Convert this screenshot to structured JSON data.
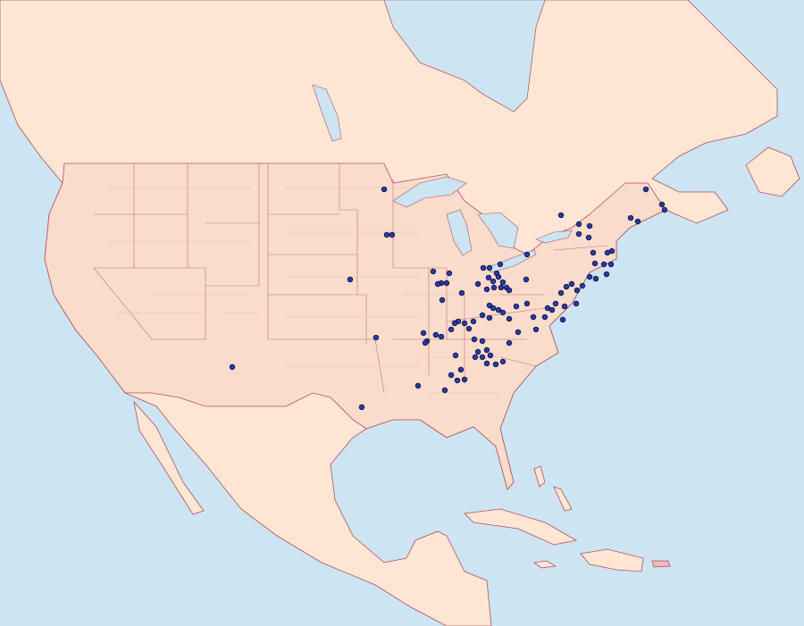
{
  "map": {
    "points": [
      {
        "lon": -92.46,
        "lat": 46.74
      },
      {
        "lon": -92.22,
        "lat": 42.78
      },
      {
        "lon": -91.74,
        "lat": 42.78
      },
      {
        "lon": -95.53,
        "lat": 38.89
      },
      {
        "lon": -93.19,
        "lat": 33.83
      },
      {
        "lon": -106.17,
        "lat": 31.27
      },
      {
        "lon": -94.48,
        "lat": 27.77
      },
      {
        "lon": -76.49,
        "lat": 44.49
      },
      {
        "lon": -74.88,
        "lat": 43.71
      },
      {
        "lon": -73.91,
        "lat": 43.55
      },
      {
        "lon": -68.83,
        "lat": 46.74
      },
      {
        "lon": -70.2,
        "lat": 44.25
      },
      {
        "lon": -69.56,
        "lat": 43.94
      },
      {
        "lon": -67.38,
        "lat": 45.42
      },
      {
        "lon": -67.14,
        "lat": 44.95
      },
      {
        "lon": -73.99,
        "lat": 42.54
      },
      {
        "lon": -74.88,
        "lat": 42.85
      },
      {
        "lon": -73.59,
        "lat": 41.22
      },
      {
        "lon": -72.3,
        "lat": 41.22
      },
      {
        "lon": -71.9,
        "lat": 41.37
      },
      {
        "lon": -73.43,
        "lat": 40.29
      },
      {
        "lon": -72.62,
        "lat": 40.21
      },
      {
        "lon": -71.98,
        "lat": 40.21
      },
      {
        "lon": -72.38,
        "lat": 39.35
      },
      {
        "lon": -73.35,
        "lat": 38.96
      },
      {
        "lon": -73.91,
        "lat": 39.12
      },
      {
        "lon": -74.56,
        "lat": 38.34
      },
      {
        "lon": -75.53,
        "lat": 38.5
      },
      {
        "lon": -75.04,
        "lat": 37.95
      },
      {
        "lon": -76.01,
        "lat": 38.26
      },
      {
        "lon": -76.49,
        "lat": 37.72
      },
      {
        "lon": -75.12,
        "lat": 36.79
      },
      {
        "lon": -76.17,
        "lat": 36.55
      },
      {
        "lon": -76.98,
        "lat": 36.79
      },
      {
        "lon": -77.7,
        "lat": 36.4
      },
      {
        "lon": -77.3,
        "lat": 36.24
      },
      {
        "lon": -76.33,
        "lat": 35.39
      },
      {
        "lon": -77.95,
        "lat": 35.62
      },
      {
        "lon": -79.56,
        "lat": 41.07
      },
      {
        "lon": -79.64,
        "lat": 38.89
      },
      {
        "lon": -81.98,
        "lat": 40.21
      },
      {
        "lon": -82.3,
        "lat": 39.43
      },
      {
        "lon": -82.95,
        "lat": 39.9
      },
      {
        "lon": -83.51,
        "lat": 39.9
      },
      {
        "lon": -83.03,
        "lat": 39.05
      },
      {
        "lon": -82.62,
        "lat": 38.73
      },
      {
        "lon": -82.14,
        "lat": 39.12
      },
      {
        "lon": -81.74,
        "lat": 38.65
      },
      {
        "lon": -81.41,
        "lat": 38.19
      },
      {
        "lon": -81.17,
        "lat": 37.95
      },
      {
        "lon": -81.9,
        "lat": 38.19
      },
      {
        "lon": -82.54,
        "lat": 38.19
      },
      {
        "lon": -83.19,
        "lat": 38.03
      },
      {
        "lon": -83.99,
        "lat": 38.5
      },
      {
        "lon": -85.45,
        "lat": 37.72
      },
      {
        "lon": -86.82,
        "lat": 38.58
      },
      {
        "lon": -87.3,
        "lat": 38.58
      },
      {
        "lon": -87.62,
        "lat": 38.5
      },
      {
        "lon": -88.03,
        "lat": 39.59
      },
      {
        "lon": -86.58,
        "lat": 39.43
      },
      {
        "lon": -87.22,
        "lat": 37.1
      },
      {
        "lon": -82.95,
        "lat": 36.63
      },
      {
        "lon": -82.62,
        "lat": 36.4
      },
      {
        "lon": -83.59,
        "lat": 35.78
      },
      {
        "lon": -82.95,
        "lat": 35.55
      },
      {
        "lon": -82.14,
        "lat": 36.24
      },
      {
        "lon": -81.74,
        "lat": 36.01
      },
      {
        "lon": -81.17,
        "lat": 35.47
      },
      {
        "lon": -80.53,
        "lat": 36.55
      },
      {
        "lon": -79.56,
        "lat": 36.79
      },
      {
        "lon": -78.99,
        "lat": 35.62
      },
      {
        "lon": -80.37,
        "lat": 34.3
      },
      {
        "lon": -84.4,
        "lat": 35.24
      },
      {
        "lon": -84.8,
        "lat": 34.61
      },
      {
        "lon": -85.77,
        "lat": 35.24
      },
      {
        "lon": -86.09,
        "lat": 35.08
      },
      {
        "lon": -86.41,
        "lat": 34.54
      },
      {
        "lon": -87.3,
        "lat": 33.91
      },
      {
        "lon": -88.59,
        "lat": 33.53
      },
      {
        "lon": -88.91,
        "lat": 34.23
      },
      {
        "lon": -88.75,
        "lat": 33.37
      },
      {
        "lon": -87.79,
        "lat": 34.07
      },
      {
        "lon": -84.32,
        "lat": 33.68
      },
      {
        "lon": -83.59,
        "lat": 33.53
      },
      {
        "lon": -83.19,
        "lat": 32.75
      },
      {
        "lon": -83.99,
        "lat": 32.59
      },
      {
        "lon": -84.24,
        "lat": 32.13
      },
      {
        "lon": -83.59,
        "lat": 32.13
      },
      {
        "lon": -82.87,
        "lat": 32.28
      },
      {
        "lon": -83.19,
        "lat": 31.58
      },
      {
        "lon": -82.38,
        "lat": 31.5
      },
      {
        "lon": -81.74,
        "lat": 31.74
      },
      {
        "lon": -81.17,
        "lat": 33.37
      },
      {
        "lon": -86.01,
        "lat": 32.28
      },
      {
        "lon": -85.53,
        "lat": 31.04
      },
      {
        "lon": -85.2,
        "lat": 30.18
      },
      {
        "lon": -86.41,
        "lat": 30.57
      },
      {
        "lon": -86.98,
        "lat": 29.25
      },
      {
        "lon": -89.4,
        "lat": 29.64
      },
      {
        "lon": -85.85,
        "lat": 30.1
      },
      {
        "lon": -85.2,
        "lat": 35.08
      },
      {
        "lon": -78.75,
        "lat": 34.54
      }
    ]
  }
}
